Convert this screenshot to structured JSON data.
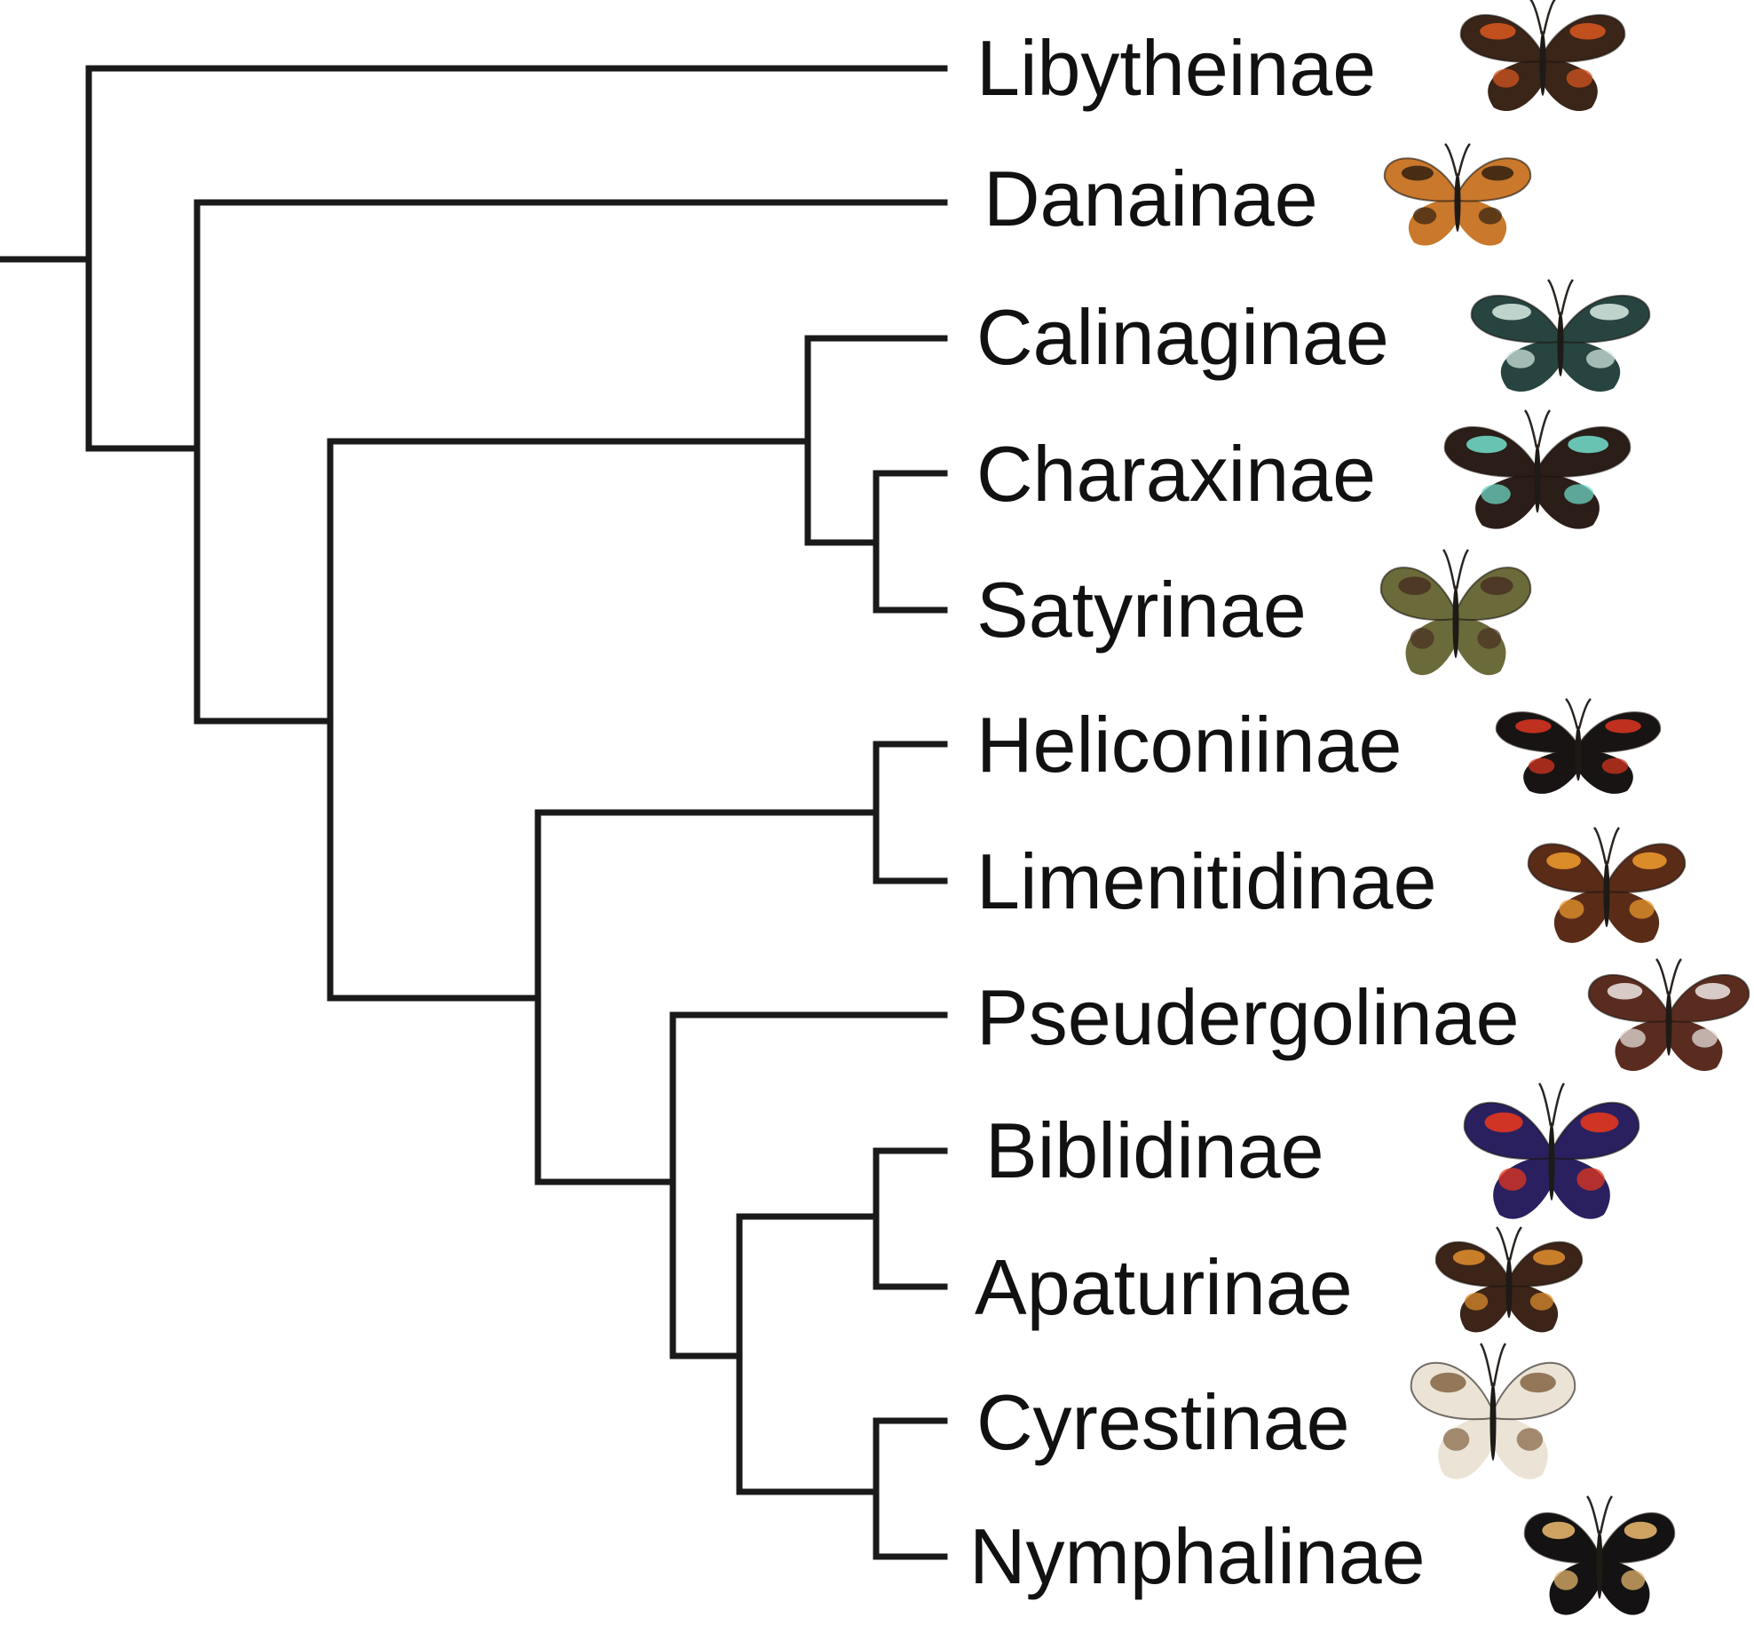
{
  "tree": {
    "taxa": [
      {
        "label": "Libytheinae",
        "icon": "butterfly-libytheinae-icon",
        "wing_color": "#3b2418",
        "pattern_color": "#d2541f"
      },
      {
        "label": "Danainae",
        "icon": "butterfly-danainae-icon",
        "wing_color": "#c9782c",
        "pattern_color": "#3a2512"
      },
      {
        "label": "Calinaginae",
        "icon": "butterfly-calinaginae-icon",
        "wing_color": "#274440",
        "pattern_color": "#cfe3dc"
      },
      {
        "label": "Charaxinae",
        "icon": "butterfly-charaxinae-icon",
        "wing_color": "#2b1d18",
        "pattern_color": "#6fd6c4"
      },
      {
        "label": "Satyrinae",
        "icon": "butterfly-satyrinae-icon",
        "wing_color": "#6b6a3a",
        "pattern_color": "#4a3423"
      },
      {
        "label": "Heliconiinae",
        "icon": "butterfly-heliconiinae-icon",
        "wing_color": "#181414",
        "pattern_color": "#d2331f"
      },
      {
        "label": "Limenitidinae",
        "icon": "butterfly-limenitidinae-icon",
        "wing_color": "#5a2c18",
        "pattern_color": "#e8962c"
      },
      {
        "label": "Pseudergolinae",
        "icon": "butterfly-pseudergolinae-icon",
        "wing_color": "#5a2c20",
        "pattern_color": "#e6dcd8"
      },
      {
        "label": "Biblidinae",
        "icon": "butterfly-biblidinae-icon",
        "wing_color": "#2a2060",
        "pattern_color": "#e2361e"
      },
      {
        "label": "Apaturinae",
        "icon": "butterfly-apaturinae-icon",
        "wing_color": "#3c2418",
        "pattern_color": "#d88a2c"
      },
      {
        "label": "Cyrestinae",
        "icon": "butterfly-cyrestinae-icon",
        "wing_color": "#ebe4d6",
        "pattern_color": "#8a6a4a"
      },
      {
        "label": "Nymphalinae",
        "icon": "butterfly-nymphalinae-icon",
        "wing_color": "#141212",
        "pattern_color": "#e2b46c"
      }
    ]
  }
}
